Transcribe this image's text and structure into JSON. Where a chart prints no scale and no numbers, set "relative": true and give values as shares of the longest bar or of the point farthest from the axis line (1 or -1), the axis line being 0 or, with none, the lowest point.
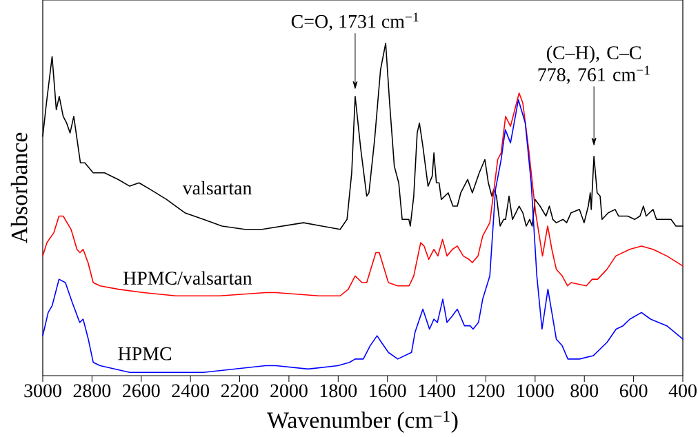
{
  "chart_data": {
    "type": "line",
    "xlabel": "Wavenumber (cm$^{−1}$)",
    "ylabel": "Absorbance",
    "relative": true,
    "tick_labels": "x",
    "xlim": [
      3000,
      400
    ],
    "xticks": [
      3000,
      2800,
      2600,
      2400,
      2200,
      2000,
      1800,
      1600,
      1400,
      1200,
      1000,
      800,
      600,
      400
    ],
    "annotations": [
      "C=O, 1731 cm$^{−1}$",
      "(C–H), C–C 778, 761 cm$^{−1}$"
    ],
    "series": [
      {
        "name": "valsartan",
        "color": "#000000",
        "x": [
          3000,
          2985,
          2962,
          2945,
          2933,
          2917,
          2903,
          2889,
          2874,
          2847,
          2829,
          2795,
          2749,
          2693,
          2647,
          2609,
          2563,
          2497,
          2423,
          2347,
          2272,
          2179,
          2109,
          1941,
          1866,
          1792,
          1764,
          1745,
          1731,
          1708,
          1684,
          1675,
          1652,
          1628,
          1607,
          1591,
          1572,
          1554,
          1540,
          1513,
          1507,
          1493,
          1479,
          1470,
          1456,
          1435,
          1418,
          1411,
          1401,
          1390,
          1381,
          1367,
          1353,
          1334,
          1316,
          1302,
          1274,
          1255,
          1227,
          1204,
          1190,
          1176,
          1168,
          1157,
          1142,
          1128,
          1120,
          1106,
          1092,
          1078,
          1065,
          1050,
          1036,
          1022,
          1012,
          1000,
          980,
          956,
          942,
          928,
          914,
          886,
          872,
          854,
          820,
          801,
          784,
          776,
          772,
          761,
          748,
          736,
          728,
          703,
          675,
          661,
          624,
          596,
          574,
          560,
          549,
          521,
          507,
          476,
          448,
          428,
          400
        ],
        "values": [
          0.72,
          0.82,
          0.96,
          0.8,
          0.84,
          0.78,
          0.76,
          0.73,
          0.78,
          0.64,
          0.64,
          0.61,
          0.61,
          0.59,
          0.57,
          0.58,
          0.56,
          0.53,
          0.49,
          0.47,
          0.45,
          0.44,
          0.44,
          0.46,
          0.45,
          0.44,
          0.47,
          0.61,
          0.84,
          0.68,
          0.54,
          0.55,
          0.71,
          0.92,
          1.0,
          0.82,
          0.63,
          0.58,
          0.47,
          0.47,
          0.45,
          0.54,
          0.73,
          0.76,
          0.69,
          0.57,
          0.6,
          0.67,
          0.58,
          0.58,
          0.53,
          0.54,
          0.55,
          0.51,
          0.51,
          0.55,
          0.59,
          0.55,
          0.61,
          0.65,
          0.58,
          0.54,
          0.56,
          0.54,
          0.45,
          0.47,
          0.47,
          0.54,
          0.47,
          0.49,
          0.51,
          0.49,
          0.45,
          0.47,
          0.45,
          0.53,
          0.51,
          0.48,
          0.51,
          0.47,
          0.46,
          0.47,
          0.46,
          0.49,
          0.5,
          0.46,
          0.51,
          0.55,
          0.5,
          0.66,
          0.55,
          0.54,
          0.47,
          0.49,
          0.5,
          0.48,
          0.48,
          0.47,
          0.48,
          0.51,
          0.48,
          0.5,
          0.47,
          0.47,
          0.47,
          0.45,
          0.45
        ]
      },
      {
        "name": "HPMC/valsartan",
        "color": "#ff0000",
        "x": [
          3000,
          2983,
          2955,
          2934,
          2917,
          2885,
          2861,
          2849,
          2836,
          2816,
          2795,
          2767,
          2693,
          2591,
          2459,
          2283,
          2095,
          2053,
          1877,
          1792,
          1759,
          1731,
          1703,
          1684,
          1647,
          1633,
          1596,
          1558,
          1512,
          1493,
          1465,
          1451,
          1432,
          1411,
          1395,
          1376,
          1358,
          1336,
          1316,
          1292,
          1269,
          1255,
          1232,
          1213,
          1184,
          1152,
          1138,
          1120,
          1100,
          1065,
          1050,
          1026,
          998,
          970,
          949,
          932,
          914,
          890,
          868,
          854,
          792,
          768,
          746,
          708,
          672,
          616,
          568,
          521,
          465,
          400
        ],
        "values": [
          0.36,
          0.4,
          0.43,
          0.48,
          0.48,
          0.44,
          0.38,
          0.37,
          0.38,
          0.34,
          0.28,
          0.27,
          0.26,
          0.25,
          0.24,
          0.24,
          0.25,
          0.25,
          0.24,
          0.24,
          0.26,
          0.3,
          0.28,
          0.28,
          0.37,
          0.37,
          0.28,
          0.27,
          0.27,
          0.3,
          0.4,
          0.39,
          0.35,
          0.38,
          0.36,
          0.41,
          0.36,
          0.38,
          0.39,
          0.36,
          0.35,
          0.34,
          0.36,
          0.42,
          0.46,
          0.65,
          0.67,
          0.78,
          0.75,
          0.85,
          0.82,
          0.68,
          0.49,
          0.36,
          0.45,
          0.38,
          0.32,
          0.3,
          0.27,
          0.28,
          0.27,
          0.29,
          0.29,
          0.32,
          0.36,
          0.38,
          0.39,
          0.38,
          0.36,
          0.33
        ]
      },
      {
        "name": "HPMC",
        "color": "#0000ff",
        "x": [
          3000,
          2978,
          2962,
          2934,
          2908,
          2880,
          2850,
          2836,
          2815,
          2795,
          2767,
          2647,
          2535,
          2347,
          2095,
          2053,
          1922,
          1801,
          1754,
          1731,
          1698,
          1670,
          1642,
          1624,
          1596,
          1558,
          1502,
          1488,
          1456,
          1429,
          1411,
          1397,
          1375,
          1358,
          1336,
          1316,
          1287,
          1264,
          1252,
          1230,
          1213,
          1184,
          1161,
          1138,
          1121,
          1100,
          1068,
          1040,
          1016,
          993,
          972,
          948,
          932,
          914,
          890,
          867,
          848,
          820,
          764,
          708,
          671,
          643,
          615,
          568,
          531,
          465,
          400
        ],
        "values": [
          0.12,
          0.19,
          0.21,
          0.29,
          0.28,
          0.22,
          0.16,
          0.17,
          0.11,
          0.04,
          0.03,
          0.01,
          0.01,
          0.01,
          0.03,
          0.03,
          0.02,
          0.03,
          0.04,
          0.05,
          0.05,
          0.09,
          0.12,
          0.1,
          0.07,
          0.05,
          0.07,
          0.13,
          0.2,
          0.14,
          0.17,
          0.16,
          0.23,
          0.16,
          0.18,
          0.2,
          0.15,
          0.15,
          0.14,
          0.16,
          0.23,
          0.3,
          0.56,
          0.65,
          0.74,
          0.7,
          0.83,
          0.76,
          0.58,
          0.3,
          0.14,
          0.26,
          0.19,
          0.11,
          0.09,
          0.05,
          0.05,
          0.05,
          0.06,
          0.1,
          0.14,
          0.15,
          0.17,
          0.19,
          0.17,
          0.15,
          0.11
        ]
      }
    ]
  }
}
